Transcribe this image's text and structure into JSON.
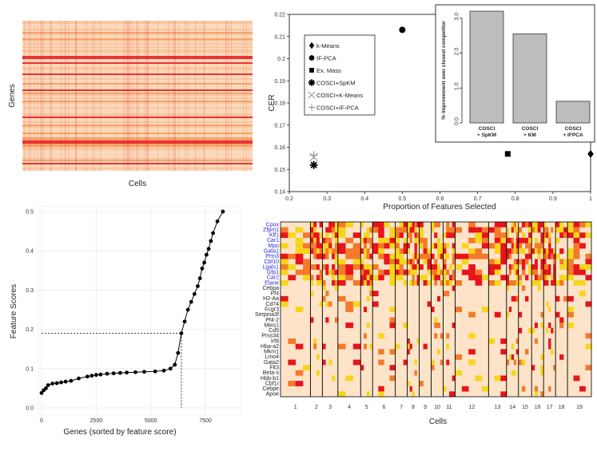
{
  "colors": {
    "hm_bg": "#fbe6cf",
    "red": "#e8141c",
    "orange": "#f47a2a",
    "yellow": "#f6d61a",
    "cream": "#fde3c8",
    "blue": "#2b2bd1",
    "bar": "#bdbdbd"
  },
  "panel_a": {
    "xlabel": "Cells",
    "ylabel": "Genes"
  },
  "chart_data": [
    {
      "id": "cer_scatter",
      "type": "scatter",
      "xlabel": "Proportion of Features Selected",
      "ylabel": "CER",
      "xlim": [
        0.2,
        1.0
      ],
      "ylim": [
        0.14,
        0.22
      ],
      "xticks": [
        "0.2",
        "0.3",
        "0.4",
        "0.5",
        "0.6",
        "0.7",
        "0.8",
        "0.9",
        "1"
      ],
      "yticks": [
        "0.14",
        "0.15",
        "0.16",
        "0.17",
        "0.18",
        "0.19",
        "0.2",
        "0.21",
        "0.22"
      ],
      "series": [
        {
          "name": "k-Means",
          "marker": "diamond",
          "x": 1.0,
          "y": 0.157
        },
        {
          "name": "IF-PCA",
          "marker": "circle",
          "x": 0.5,
          "y": 0.213
        },
        {
          "name": "Ex. Mass",
          "marker": "square",
          "x": 0.78,
          "y": 0.157
        },
        {
          "name": "COSCI+SpKM",
          "marker": "star",
          "x": 0.265,
          "y": 0.152
        },
        {
          "name": "COSCI+K-Means",
          "marker": "cross",
          "x": 0.265,
          "y": 0.1555
        },
        {
          "name": "COSCI+IF-PCA",
          "marker": "plus",
          "x": 0.265,
          "y": 0.1565
        }
      ]
    },
    {
      "id": "improvement_bar",
      "type": "bar",
      "ylabel": "% improvement over closest competitor",
      "ylim": [
        0,
        3.2
      ],
      "yticks": [
        "0.0",
        "1.0",
        "2.0",
        "3.0"
      ],
      "categories": [
        [
          "COSCI",
          "+ SpKM"
        ],
        [
          "COSCI",
          "+ KM"
        ],
        [
          "COSCI",
          "+ IFPCA"
        ]
      ],
      "values": [
        3.2,
        2.55,
        0.62
      ]
    },
    {
      "id": "feature_scores",
      "type": "line",
      "xlabel": "Genes (sorted by feature score)",
      "ylabel": "Feature Scores",
      "xlim": [
        0,
        9000
      ],
      "ylim": [
        0.0,
        0.5
      ],
      "xticks": [
        "0",
        "2500",
        "5000",
        "7500"
      ],
      "yticks": [
        "0.0",
        "0.1",
        "0.2",
        "0.3",
        "0.4",
        "0.5"
      ],
      "threshold": {
        "x": 6400,
        "y": 0.19
      },
      "points": [
        [
          0,
          0.038
        ],
        [
          100,
          0.045
        ],
        [
          200,
          0.05
        ],
        [
          300,
          0.058
        ],
        [
          500,
          0.062
        ],
        [
          700,
          0.063
        ],
        [
          900,
          0.065
        ],
        [
          1100,
          0.067
        ],
        [
          1350,
          0.069
        ],
        [
          1700,
          0.075
        ],
        [
          2100,
          0.08
        ],
        [
          2300,
          0.082
        ],
        [
          2500,
          0.084
        ],
        [
          2700,
          0.085
        ],
        [
          3000,
          0.087
        ],
        [
          3300,
          0.088
        ],
        [
          3600,
          0.089
        ],
        [
          3900,
          0.09
        ],
        [
          4300,
          0.091
        ],
        [
          4700,
          0.092
        ],
        [
          5200,
          0.093
        ],
        [
          5600,
          0.095
        ],
        [
          5900,
          0.1
        ],
        [
          6100,
          0.11
        ],
        [
          6250,
          0.14
        ],
        [
          6400,
          0.19
        ],
        [
          6550,
          0.22
        ],
        [
          6700,
          0.25
        ],
        [
          6850,
          0.27
        ],
        [
          7000,
          0.29
        ],
        [
          7150,
          0.31
        ],
        [
          7250,
          0.33
        ],
        [
          7350,
          0.355
        ],
        [
          7450,
          0.37
        ],
        [
          7550,
          0.39
        ],
        [
          7650,
          0.405
        ],
        [
          7750,
          0.425
        ],
        [
          7850,
          0.445
        ],
        [
          8050,
          0.475
        ],
        [
          8300,
          0.5
        ]
      ]
    },
    {
      "id": "gene_heatmap",
      "type": "heatmap",
      "xlabel": "Cells",
      "clusters": [
        "1",
        "2",
        "3",
        "4",
        "5",
        "6",
        "7",
        "8",
        "9",
        "10",
        "11",
        "12",
        "13",
        "14",
        "15",
        "16",
        "17",
        "18",
        "19"
      ],
      "genes": [
        "Cpox",
        "Zfpm1",
        "Klf1",
        "Car1",
        "Mpo",
        "Gata1",
        "Prtn3",
        "Cbf10",
        "Lgals1",
        "Gfp1",
        "Car2",
        "Elane",
        "Cebpa",
        "Pf4",
        "H2-Aa",
        "Cd74",
        "Fcgr3",
        "Serpina3f",
        "Pf4-2",
        "Meis1",
        "Cd5",
        "Prss34",
        "Irf8",
        "Hba-a2",
        "Mkm1",
        "Lmo4",
        "Gata2",
        "Flt3",
        "Beta-s",
        "Hbb-b1",
        "Cbf1r",
        "Cebpe",
        "Apoe"
      ],
      "blue_genes": [
        "Cpox",
        "Zfpm1",
        "Klf1",
        "Car1",
        "Mpo",
        "Gata1",
        "Prtn3",
        "Cbf10",
        "Lgals1",
        "Gfp1",
        "Car2",
        "Elane"
      ]
    }
  ]
}
